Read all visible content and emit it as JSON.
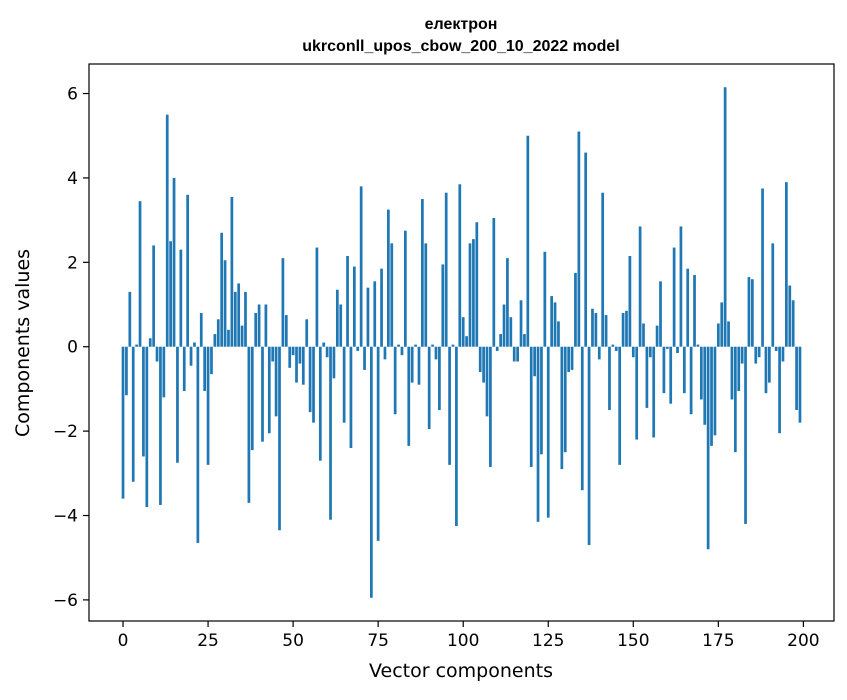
{
  "chart_data": {
    "type": "bar",
    "title": "електрон",
    "subtitle": "ukrconll_upos_cbow_200_10_2022 model",
    "xlabel": "Vector components",
    "ylabel": "Components values",
    "xlim": [
      -10,
      209
    ],
    "ylim": [
      -6.5,
      6.7
    ],
    "xticks": [
      0,
      25,
      50,
      75,
      100,
      125,
      150,
      175,
      200
    ],
    "yticks": [
      -6,
      -4,
      -2,
      0,
      2,
      4,
      6
    ],
    "xtick_labels": [
      "0",
      "25",
      "50",
      "75",
      "100",
      "125",
      "150",
      "175",
      "200"
    ],
    "ytick_labels": [
      "−6",
      "−4",
      "−2",
      "0",
      "2",
      "4",
      "6"
    ],
    "bar_color": "#1f77b4",
    "grid": false,
    "x": [
      0,
      1,
      2,
      3,
      4,
      5,
      6,
      7,
      8,
      9,
      10,
      11,
      12,
      13,
      14,
      15,
      16,
      17,
      18,
      19,
      20,
      21,
      22,
      23,
      24,
      25,
      26,
      27,
      28,
      29,
      30,
      31,
      32,
      33,
      34,
      35,
      36,
      37,
      38,
      39,
      40,
      41,
      42,
      43,
      44,
      45,
      46,
      47,
      48,
      49,
      50,
      51,
      52,
      53,
      54,
      55,
      56,
      57,
      58,
      59,
      60,
      61,
      62,
      63,
      64,
      65,
      66,
      67,
      68,
      69,
      70,
      71,
      72,
      73,
      74,
      75,
      76,
      77,
      78,
      79,
      80,
      81,
      82,
      83,
      84,
      85,
      86,
      87,
      88,
      89,
      90,
      91,
      92,
      93,
      94,
      95,
      96,
      97,
      98,
      99,
      100,
      101,
      102,
      103,
      104,
      105,
      106,
      107,
      108,
      109,
      110,
      111,
      112,
      113,
      114,
      115,
      116,
      117,
      118,
      119,
      120,
      121,
      122,
      123,
      124,
      125,
      126,
      127,
      128,
      129,
      130,
      131,
      132,
      133,
      134,
      135,
      136,
      137,
      138,
      139,
      140,
      141,
      142,
      143,
      144,
      145,
      146,
      147,
      148,
      149,
      150,
      151,
      152,
      153,
      154,
      155,
      156,
      157,
      158,
      159,
      160,
      161,
      162,
      163,
      164,
      165,
      166,
      167,
      168,
      169,
      170,
      171,
      172,
      173,
      174,
      175,
      176,
      177,
      178,
      179,
      180,
      181,
      182,
      183,
      184,
      185,
      186,
      187,
      188,
      189,
      190,
      191,
      192,
      193,
      194,
      195,
      196,
      197,
      198,
      199
    ],
    "values": [
      -3.6,
      -1.15,
      1.3,
      -3.2,
      0.05,
      3.45,
      -2.6,
      -3.8,
      0.2,
      2.4,
      -0.35,
      -3.75,
      -1.2,
      5.5,
      2.5,
      4.0,
      -2.75,
      2.3,
      -1.05,
      3.6,
      -0.45,
      0.1,
      -4.65,
      0.8,
      -1.05,
      -2.8,
      -0.65,
      0.3,
      0.65,
      2.7,
      2.05,
      0.4,
      3.55,
      1.3,
      1.5,
      0.5,
      1.3,
      -3.7,
      -2.45,
      0.8,
      1.0,
      -2.25,
      1.0,
      -2.05,
      -0.35,
      -1.65,
      -4.35,
      2.1,
      0.75,
      -0.5,
      -0.2,
      -0.85,
      -0.4,
      -0.9,
      0.65,
      -1.55,
      -1.8,
      2.35,
      -2.7,
      0.1,
      -0.25,
      -4.1,
      -0.75,
      1.35,
      1.0,
      -1.8,
      2.15,
      -2.4,
      1.9,
      -0.1,
      3.8,
      -0.55,
      1.4,
      -5.95,
      1.55,
      -4.6,
      1.85,
      -0.3,
      3.25,
      2.45,
      -1.6,
      0.05,
      -0.2,
      2.75,
      -2.35,
      -0.85,
      0.05,
      -0.9,
      3.5,
      2.45,
      -1.95,
      0.05,
      -0.3,
      -1.5,
      1.95,
      3.65,
      -2.8,
      0.05,
      -4.25,
      3.85,
      0.7,
      0.25,
      2.45,
      2.55,
      2.95,
      -0.6,
      -0.85,
      -1.65,
      -2.85,
      3.05,
      -0.1,
      0.3,
      1.0,
      2.1,
      0.7,
      -0.35,
      -0.35,
      1.1,
      0.3,
      5.0,
      -2.85,
      -0.7,
      -4.15,
      -2.55,
      2.25,
      -4.05,
      1.2,
      1.05,
      0.6,
      -2.9,
      -2.5,
      -0.6,
      -0.55,
      1.75,
      5.1,
      -3.4,
      4.6,
      -4.7,
      0.9,
      0.8,
      -0.3,
      3.65,
      0.75,
      -1.5,
      0.05,
      -0.1,
      -2.8,
      0.8,
      0.85,
      2.15,
      -0.25,
      -2.2,
      2.85,
      0.55,
      -1.45,
      -0.25,
      -2.15,
      0.5,
      1.55,
      -1.1,
      -0.05,
      -1.35,
      2.35,
      -0.15,
      2.85,
      -1.1,
      1.85,
      -1.6,
      1.7,
      0.05,
      -1.25,
      -1.85,
      -4.8,
      -2.35,
      -2.1,
      0.55,
      1.05,
      6.15,
      0.6,
      -1.25,
      -2.5,
      -1.05,
      -0.4,
      -4.2,
      1.65,
      1.6,
      -0.4,
      -0.25,
      3.75,
      -1.1,
      -0.85,
      2.45,
      -0.1,
      -2.05,
      -0.35,
      3.9,
      1.45,
      1.1,
      -1.5,
      -1.8
    ]
  }
}
